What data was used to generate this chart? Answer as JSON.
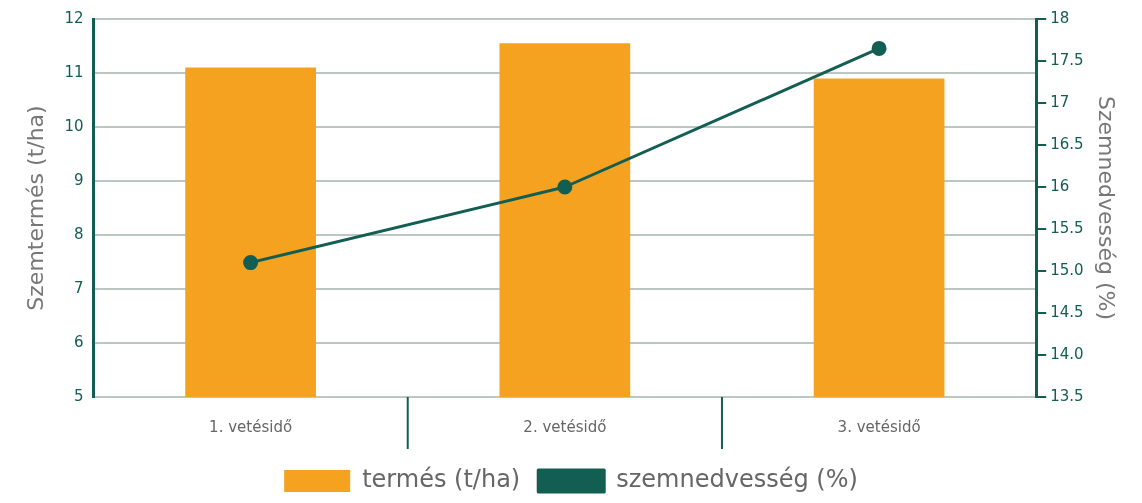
{
  "chart_data": {
    "type": "bar",
    "ylabel": "Szemtermés (t/ha)",
    "y2label": "Szemnedvesség (%)",
    "categories": [
      "1. vetésidő",
      "2. vetésidő",
      "3. vetésidő"
    ],
    "series": [
      {
        "name": "termés (t/ha)",
        "color": "#f4a21f",
        "values": [
          11.1,
          11.55,
          10.9
        ]
      },
      {
        "name": "szemnedvesség (%)",
        "type": "line",
        "axis": "y2",
        "color": "#135e52",
        "values": [
          15.1,
          16.0,
          17.65
        ]
      }
    ],
    "ylim": [
      5,
      12
    ],
    "yticks": [
      5,
      6,
      7,
      8,
      9,
      10,
      11,
      12
    ],
    "y2lim": [
      13.5,
      18
    ],
    "y2ticks": [
      {
        "value": 13.5,
        "label": "13.5"
      },
      {
        "value": 14,
        "label": "14.0"
      },
      {
        "value": 14.5,
        "label": "14.5"
      },
      {
        "value": 15,
        "label": "15.0"
      },
      {
        "value": 15.5,
        "label": "15.5"
      },
      {
        "value": 16,
        "label": "16"
      },
      {
        "value": 16.5,
        "label": "16.5"
      },
      {
        "value": 17,
        "label": "17"
      },
      {
        "value": 17.5,
        "label": "17.5"
      },
      {
        "value": 18,
        "label": "18"
      }
    ],
    "grid": "y",
    "legend": "bottom",
    "marker": "circle",
    "line_style": "solid"
  }
}
